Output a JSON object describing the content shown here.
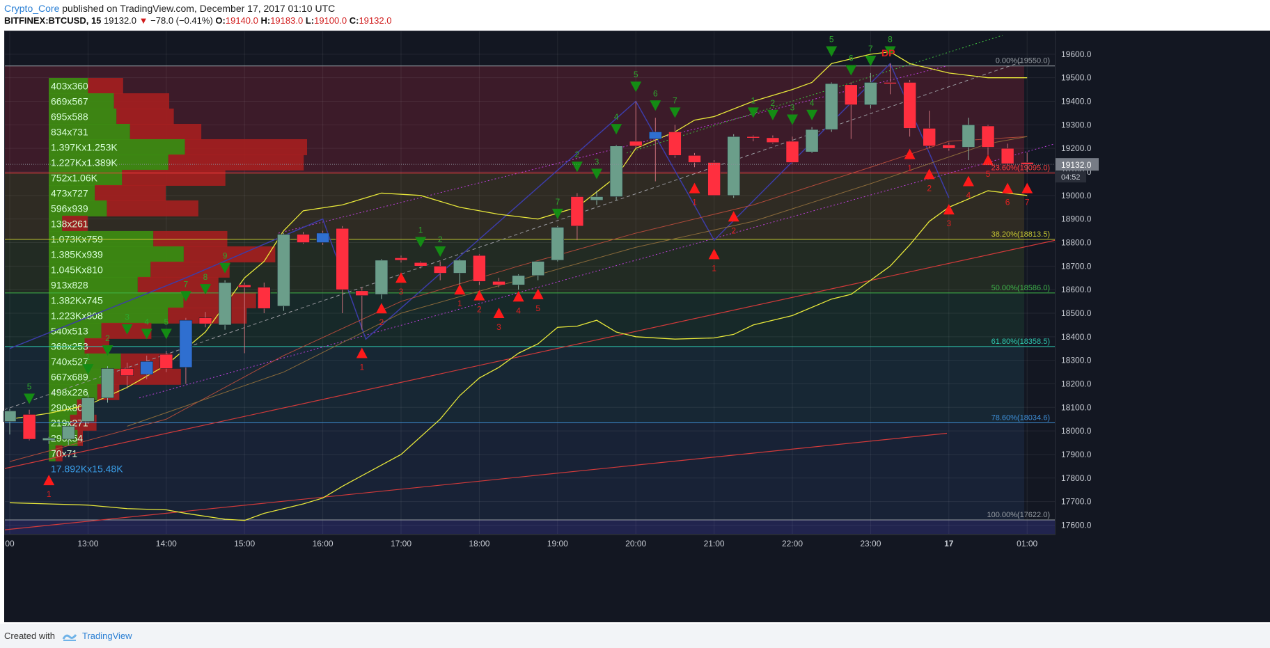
{
  "header": {
    "author": "Crypto_Core",
    "published": "published on TradingView.com, December 17, 2017 01:10 UTC",
    "symbol": "BITFINEX:BTCUSD, 15",
    "last": "19132.0",
    "change": "−78.0 (−0.41%)",
    "o_label": "O:",
    "o": "19140.0",
    "h_label": "H:",
    "h": "19183.0",
    "l_label": "L:",
    "l": "19100.0",
    "c_label": "C:",
    "c": "19132.0"
  },
  "footer": {
    "created_with": "Created with",
    "brand": "TradingView"
  },
  "colors": {
    "background": "#131722",
    "bull": "#6b9e8a",
    "bear": "#ff2f3f",
    "blue_candle": "#2f6fd0",
    "bull_vol": "#3d8a12",
    "bear_vol": "#a51f1f",
    "band": "#e8e83a"
  },
  "chart_data": {
    "type": "candlestick",
    "symbol": "BTCUSD",
    "interval": "15",
    "ylim": [
      17560,
      19700
    ],
    "y_ticks": [
      17600,
      17700,
      17800,
      17900,
      18000,
      18100,
      18200,
      18300,
      18400,
      18500,
      18600,
      18700,
      18800,
      18900,
      19000,
      19100,
      19200,
      19300,
      19400,
      19500,
      19600
    ],
    "x_ticks": [
      {
        "label": "00",
        "i": 0
      },
      {
        "label": "13:00",
        "i": 4
      },
      {
        "label": "14:00",
        "i": 8
      },
      {
        "label": "15:00",
        "i": 12
      },
      {
        "label": "16:00",
        "i": 16
      },
      {
        "label": "17:00",
        "i": 20
      },
      {
        "label": "18:00",
        "i": 24
      },
      {
        "label": "19:00",
        "i": 28
      },
      {
        "label": "20:00",
        "i": 32
      },
      {
        "label": "21:00",
        "i": 36
      },
      {
        "label": "22:00",
        "i": 40
      },
      {
        "label": "23:00",
        "i": 44
      },
      {
        "label": "17",
        "i": 48
      },
      {
        "label": "01:00",
        "i": 52
      }
    ],
    "current_price": "19132.0",
    "countdown": "04:52",
    "candles": [
      {
        "o": 18040,
        "h": 18095,
        "l": 17985,
        "c": 18085,
        "t": "bull"
      },
      {
        "o": 18070,
        "h": 18090,
        "l": 17960,
        "c": 17965,
        "t": "bear"
      },
      {
        "o": 17960,
        "h": 17975,
        "l": 17945,
        "c": 17970,
        "t": "bull"
      },
      {
        "o": 17965,
        "h": 18035,
        "l": 17940,
        "c": 18020,
        "t": "bull"
      },
      {
        "o": 18040,
        "h": 18155,
        "l": 18030,
        "c": 18140,
        "t": "bull"
      },
      {
        "o": 18140,
        "h": 18275,
        "l": 18120,
        "c": 18265,
        "t": "bull"
      },
      {
        "o": 18265,
        "h": 18290,
        "l": 18180,
        "c": 18235,
        "t": "bear"
      },
      {
        "o": 18240,
        "h": 18320,
        "l": 18220,
        "c": 18295,
        "t": "blue"
      },
      {
        "o": 18325,
        "h": 18340,
        "l": 18250,
        "c": 18265,
        "t": "bear"
      },
      {
        "o": 18270,
        "h": 18480,
        "l": 18200,
        "c": 18470,
        "t": "blue"
      },
      {
        "o": 18480,
        "h": 18505,
        "l": 18440,
        "c": 18455,
        "t": "bear"
      },
      {
        "o": 18450,
        "h": 18640,
        "l": 18430,
        "c": 18630,
        "t": "bull"
      },
      {
        "o": 18620,
        "h": 18630,
        "l": 18330,
        "c": 18610,
        "t": "bear"
      },
      {
        "o": 18610,
        "h": 18630,
        "l": 18500,
        "c": 18520,
        "t": "bear"
      },
      {
        "o": 18530,
        "h": 18840,
        "l": 18510,
        "c": 18835,
        "t": "bull"
      },
      {
        "o": 18835,
        "h": 18845,
        "l": 18795,
        "c": 18800,
        "t": "bear"
      },
      {
        "o": 18800,
        "h": 18850,
        "l": 18790,
        "c": 18840,
        "t": "blue"
      },
      {
        "o": 18860,
        "h": 18870,
        "l": 18500,
        "c": 18600,
        "t": "bear"
      },
      {
        "o": 18595,
        "h": 18610,
        "l": 18430,
        "c": 18575,
        "t": "bear"
      },
      {
        "o": 18580,
        "h": 18730,
        "l": 18560,
        "c": 18725,
        "t": "bull"
      },
      {
        "o": 18735,
        "h": 18745,
        "l": 18715,
        "c": 18725,
        "t": "bear"
      },
      {
        "o": 18715,
        "h": 18720,
        "l": 18690,
        "c": 18700,
        "t": "bear"
      },
      {
        "o": 18700,
        "h": 18720,
        "l": 18640,
        "c": 18670,
        "t": "bear"
      },
      {
        "o": 18670,
        "h": 18730,
        "l": 18600,
        "c": 18725,
        "t": "bull"
      },
      {
        "o": 18745,
        "h": 18750,
        "l": 18620,
        "c": 18635,
        "t": "bear"
      },
      {
        "o": 18635,
        "h": 18650,
        "l": 18610,
        "c": 18620,
        "t": "bear"
      },
      {
        "o": 18620,
        "h": 18665,
        "l": 18600,
        "c": 18660,
        "t": "bull"
      },
      {
        "o": 18660,
        "h": 18720,
        "l": 18640,
        "c": 18720,
        "t": "bull"
      },
      {
        "o": 18725,
        "h": 18870,
        "l": 18720,
        "c": 18865,
        "t": "bull"
      },
      {
        "o": 18995,
        "h": 19010,
        "l": 18810,
        "c": 18870,
        "t": "bear"
      },
      {
        "o": 18980,
        "h": 19020,
        "l": 18960,
        "c": 18995,
        "t": "bull"
      },
      {
        "o": 18995,
        "h": 19215,
        "l": 18980,
        "c": 19210,
        "t": "bull"
      },
      {
        "o": 19230,
        "h": 19400,
        "l": 19200,
        "c": 19210,
        "t": "bear"
      },
      {
        "o": 19240,
        "h": 19330,
        "l": 19060,
        "c": 19270,
        "t": "blue"
      },
      {
        "o": 19270,
        "h": 19300,
        "l": 19160,
        "c": 19170,
        "t": "bear"
      },
      {
        "o": 19170,
        "h": 19180,
        "l": 19120,
        "c": 19140,
        "t": "bear"
      },
      {
        "o": 19140,
        "h": 19150,
        "l": 19000,
        "c": 19000,
        "t": "bear"
      },
      {
        "o": 19000,
        "h": 19260,
        "l": 18990,
        "c": 19250,
        "t": "bull"
      },
      {
        "o": 19250,
        "h": 19255,
        "l": 19230,
        "c": 19245,
        "t": "bear"
      },
      {
        "o": 19245,
        "h": 19255,
        "l": 19220,
        "c": 19225,
        "t": "bear"
      },
      {
        "o": 19140,
        "h": 19250,
        "l": 19135,
        "c": 19230,
        "t": "bear"
      },
      {
        "o": 19185,
        "h": 19290,
        "l": 19180,
        "c": 19280,
        "t": "bull"
      },
      {
        "o": 19280,
        "h": 19480,
        "l": 19270,
        "c": 19475,
        "t": "bull"
      },
      {
        "o": 19470,
        "h": 19480,
        "l": 19240,
        "c": 19385,
        "t": "bear"
      },
      {
        "o": 19385,
        "h": 19520,
        "l": 19370,
        "c": 19480,
        "t": "bull"
      },
      {
        "o": 19480,
        "h": 19560,
        "l": 19430,
        "c": 19480,
        "t": "bear"
      },
      {
        "o": 19480,
        "h": 19490,
        "l": 19250,
        "c": 19285,
        "t": "bear"
      },
      {
        "o": 19285,
        "h": 19360,
        "l": 19200,
        "c": 19210,
        "t": "bear"
      },
      {
        "o": 19215,
        "h": 19225,
        "l": 19190,
        "c": 19200,
        "t": "bear"
      },
      {
        "o": 19205,
        "h": 19330,
        "l": 19150,
        "c": 19300,
        "t": "bull"
      },
      {
        "o": 19295,
        "h": 19300,
        "l": 19150,
        "c": 19205,
        "t": "bear"
      },
      {
        "o": 19200,
        "h": 19220,
        "l": 19130,
        "c": 19135,
        "t": "bear"
      },
      {
        "o": 19140,
        "h": 19183,
        "l": 19100,
        "c": 19132,
        "t": "bear"
      }
    ],
    "volume_profile": [
      {
        "label": "403x360",
        "price": 19465,
        "buy": 403,
        "sell": 360
      },
      {
        "label": "669x567",
        "price": 19400,
        "buy": 669,
        "sell": 567
      },
      {
        "label": "695x588",
        "price": 19335,
        "buy": 695,
        "sell": 588
      },
      {
        "label": "834x731",
        "price": 19270,
        "buy": 834,
        "sell": 731
      },
      {
        "label": "1.397Kx1.253K",
        "price": 19205,
        "buy": 1397,
        "sell": 1253
      },
      {
        "label": "1.227Kx1.389K",
        "price": 19140,
        "buy": 1227,
        "sell": 1389
      },
      {
        "label": "752x1.06K",
        "price": 19075,
        "buy": 752,
        "sell": 1060
      },
      {
        "label": "473x727",
        "price": 19010,
        "buy": 473,
        "sell": 727
      },
      {
        "label": "596x939",
        "price": 18945,
        "buy": 596,
        "sell": 939
      },
      {
        "label": "138x261",
        "price": 18880,
        "buy": 138,
        "sell": 261
      },
      {
        "label": "1.073Kx759",
        "price": 18815,
        "buy": 1073,
        "sell": 759
      },
      {
        "label": "1.385Kx939",
        "price": 18750,
        "buy": 1385,
        "sell": 939
      },
      {
        "label": "1.045Kx810",
        "price": 18685,
        "buy": 1045,
        "sell": 810
      },
      {
        "label": "913x828",
        "price": 18620,
        "buy": 913,
        "sell": 828
      },
      {
        "label": "1.382Kx745",
        "price": 18555,
        "buy": 1382,
        "sell": 745
      },
      {
        "label": "1.223Kx808",
        "price": 18490,
        "buy": 1223,
        "sell": 808
      },
      {
        "label": "540x513",
        "price": 18425,
        "buy": 540,
        "sell": 513
      },
      {
        "label": "368x253",
        "price": 18360,
        "buy": 368,
        "sell": 253
      },
      {
        "label": "740x527",
        "price": 18295,
        "buy": 740,
        "sell": 527
      },
      {
        "label": "667x689",
        "price": 18230,
        "buy": 667,
        "sell": 689
      },
      {
        "label": "498x226",
        "price": 18165,
        "buy": 498,
        "sell": 226
      },
      {
        "label": "290x80",
        "price": 18100,
        "buy": 290,
        "sell": 80
      },
      {
        "label": "219x271",
        "price": 18035,
        "buy": 219,
        "sell": 271
      },
      {
        "label": "296x54",
        "price": 17970,
        "buy": 296,
        "sell": 54
      },
      {
        "label": "70x71",
        "price": 17905,
        "buy": 70,
        "sell": 71
      },
      {
        "label": "17.892Kx15.48K",
        "price": 17840,
        "buy": 17892,
        "sell": 15480
      }
    ],
    "fib_levels": [
      {
        "label": "0.00%(19550.0)",
        "price": 19550,
        "color": "#9aa0a6"
      },
      {
        "label": "23.60%(19095.0)",
        "price": 19095,
        "color": "#ff4040"
      },
      {
        "label": "38.20%(18813.5)",
        "price": 18813.5,
        "color": "#c8c832"
      },
      {
        "label": "50.00%(18586.0)",
        "price": 18586,
        "color": "#3fb54a"
      },
      {
        "label": "61.80%(18358.5)",
        "price": 18358.5,
        "color": "#2ec8b0"
      },
      {
        "label": "78.60%(18034.6)",
        "price": 18034.6,
        "color": "#3e8fd8"
      },
      {
        "label": "100.00%(17622.0)",
        "price": 17622,
        "color": "#9aa0a6"
      }
    ],
    "bb_upper": [
      [
        0,
        18050
      ],
      [
        2,
        18075
      ],
      [
        4,
        18110
      ],
      [
        6,
        18185
      ],
      [
        8,
        18280
      ],
      [
        10,
        18420
      ],
      [
        12,
        18650
      ],
      [
        13,
        18720
      ],
      [
        14,
        18850
      ],
      [
        15,
        18935
      ],
      [
        17,
        18960
      ],
      [
        19,
        19010
      ],
      [
        21,
        19000
      ],
      [
        23,
        18950
      ],
      [
        25,
        18920
      ],
      [
        27,
        18900
      ],
      [
        29,
        18950
      ],
      [
        31,
        19080
      ],
      [
        32,
        19200
      ],
      [
        34,
        19270
      ],
      [
        35,
        19320
      ],
      [
        36,
        19335
      ],
      [
        38,
        19400
      ],
      [
        40,
        19450
      ],
      [
        41,
        19480
      ],
      [
        42,
        19560
      ],
      [
        44,
        19600
      ],
      [
        45,
        19610
      ],
      [
        46,
        19560
      ],
      [
        47,
        19540
      ],
      [
        48,
        19520
      ],
      [
        50,
        19500
      ],
      [
        52,
        19500
      ]
    ],
    "bb_lower": [
      [
        0,
        17695
      ],
      [
        2,
        17690
      ],
      [
        4,
        17685
      ],
      [
        6,
        17670
      ],
      [
        8,
        17665
      ],
      [
        9,
        17650
      ],
      [
        11,
        17625
      ],
      [
        12,
        17620
      ],
      [
        13,
        17650
      ],
      [
        15,
        17690
      ],
      [
        16,
        17715
      ],
      [
        17,
        17765
      ],
      [
        19,
        17855
      ],
      [
        20,
        17900
      ],
      [
        22,
        18050
      ],
      [
        23,
        18150
      ],
      [
        24,
        18225
      ],
      [
        25,
        18270
      ],
      [
        26,
        18330
      ],
      [
        27,
        18370
      ],
      [
        28,
        18440
      ],
      [
        29,
        18445
      ],
      [
        30,
        18470
      ],
      [
        31,
        18420
      ],
      [
        32,
        18400
      ],
      [
        34,
        18390
      ],
      [
        36,
        18395
      ],
      [
        37,
        18410
      ],
      [
        38,
        18450
      ],
      [
        40,
        18490
      ],
      [
        42,
        18560
      ],
      [
        43,
        18580
      ],
      [
        44,
        18640
      ],
      [
        45,
        18700
      ],
      [
        46,
        18790
      ],
      [
        47,
        18890
      ],
      [
        48,
        18950
      ],
      [
        50,
        19020
      ],
      [
        52,
        19000
      ]
    ],
    "markers_up": [
      {
        "i": 2,
        "p": 17790,
        "n": "1"
      },
      {
        "i": 18,
        "p": 18330,
        "n": "1"
      },
      {
        "i": 19,
        "p": 18520,
        "n": "2"
      },
      {
        "i": 20,
        "p": 18650,
        "n": "3"
      },
      {
        "i": 23,
        "p": 18600,
        "n": "1"
      },
      {
        "i": 24,
        "p": 18575,
        "n": "2"
      },
      {
        "i": 25,
        "p": 18500,
        "n": "3"
      },
      {
        "i": 26,
        "p": 18570,
        "n": "4"
      },
      {
        "i": 27,
        "p": 18580,
        "n": "5"
      },
      {
        "i": 35,
        "p": 19030,
        "n": "1"
      },
      {
        "i": 36,
        "p": 18750,
        "n": "1"
      },
      {
        "i": 37,
        "p": 18910,
        "n": "2"
      },
      {
        "i": 46,
        "p": 19175,
        "n": "1"
      },
      {
        "i": 47,
        "p": 19090,
        "n": "2"
      },
      {
        "i": 48,
        "p": 18940,
        "n": "3"
      },
      {
        "i": 49,
        "p": 19060,
        "n": "4"
      },
      {
        "i": 50,
        "p": 19150,
        "n": "5"
      },
      {
        "i": 51,
        "p": 19030,
        "n": "6"
      },
      {
        "i": 52,
        "p": 19030,
        "n": "7"
      }
    ],
    "markers_down": [
      {
        "i": 1,
        "p": 18135,
        "n": "5"
      },
      {
        "i": 4,
        "p": 18260,
        "n": "1"
      },
      {
        "i": 5,
        "p": 18340,
        "n": "2"
      },
      {
        "i": 6,
        "p": 18430,
        "n": "3"
      },
      {
        "i": 7,
        "p": 18410,
        "n": "4"
      },
      {
        "i": 8,
        "p": 18410,
        "n": "5"
      },
      {
        "i": 9,
        "p": 18570,
        "n": "7"
      },
      {
        "i": 10,
        "p": 18600,
        "n": "8"
      },
      {
        "i": 11,
        "p": 18690,
        "n": "9"
      },
      {
        "i": 21,
        "p": 18800,
        "n": "1"
      },
      {
        "i": 22,
        "p": 18760,
        "n": "2"
      },
      {
        "i": 28,
        "p": 18920,
        "n": "7"
      },
      {
        "i": 29,
        "p": 19120,
        "n": "2"
      },
      {
        "i": 30,
        "p": 19090,
        "n": "3"
      },
      {
        "i": 31,
        "p": 19280,
        "n": "4"
      },
      {
        "i": 32,
        "p": 19460,
        "n": "5"
      },
      {
        "i": 33,
        "p": 19380,
        "n": "6"
      },
      {
        "i": 34,
        "p": 19350,
        "n": "7"
      },
      {
        "i": 38,
        "p": 19350,
        "n": "1"
      },
      {
        "i": 39,
        "p": 19340,
        "n": "2"
      },
      {
        "i": 40,
        "p": 19320,
        "n": "3"
      },
      {
        "i": 41,
        "p": 19340,
        "n": "4"
      },
      {
        "i": 42,
        "p": 19610,
        "n": "5"
      },
      {
        "i": 43,
        "p": 19530,
        "n": "6"
      },
      {
        "i": 44,
        "p": 19570,
        "n": "7"
      },
      {
        "i": 45,
        "p": 19610,
        "n": "8"
      }
    ],
    "annotation": "DP"
  }
}
